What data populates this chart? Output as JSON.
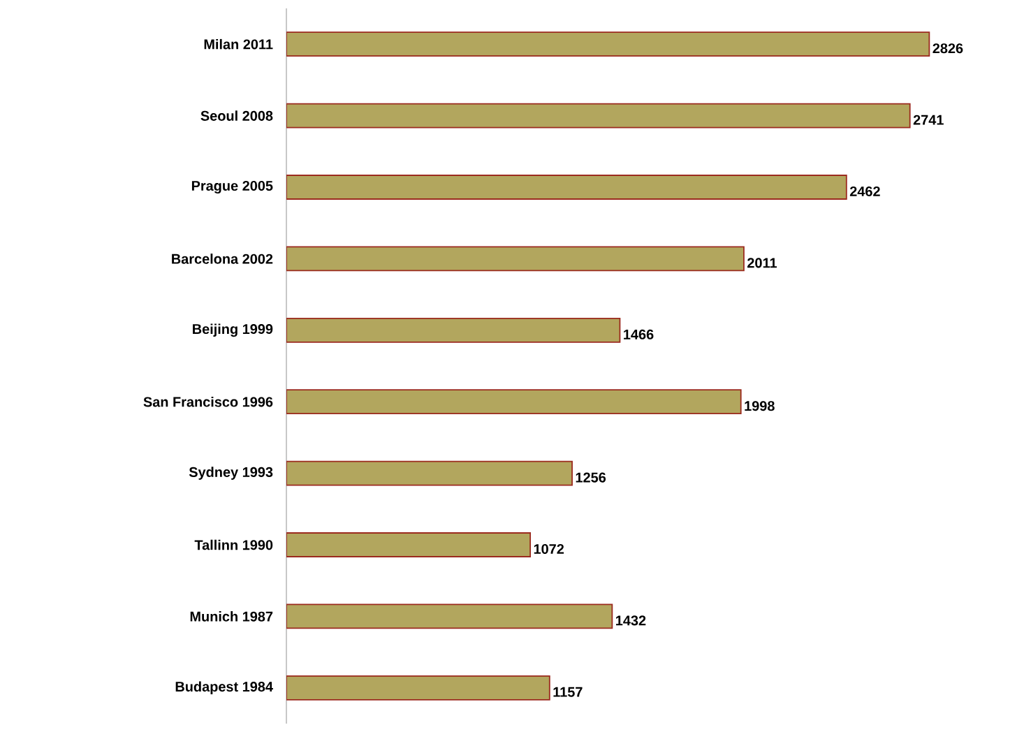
{
  "chart_data": {
    "type": "bar",
    "orientation": "horizontal",
    "categories": [
      "Milan 2011",
      "Seoul 2008",
      "Prague 2005",
      "Barcelona 2002",
      "Beijing 1999",
      "San Francisco 1996",
      "Sydney 1993",
      "Tallinn 1990",
      "Munich 1987",
      "Budapest 1984"
    ],
    "values": [
      2826,
      2741,
      2462,
      2011,
      1466,
      1998,
      1256,
      1072,
      1432,
      1157
    ],
    "color": "#b2a65e",
    "data_labels": true
  }
}
